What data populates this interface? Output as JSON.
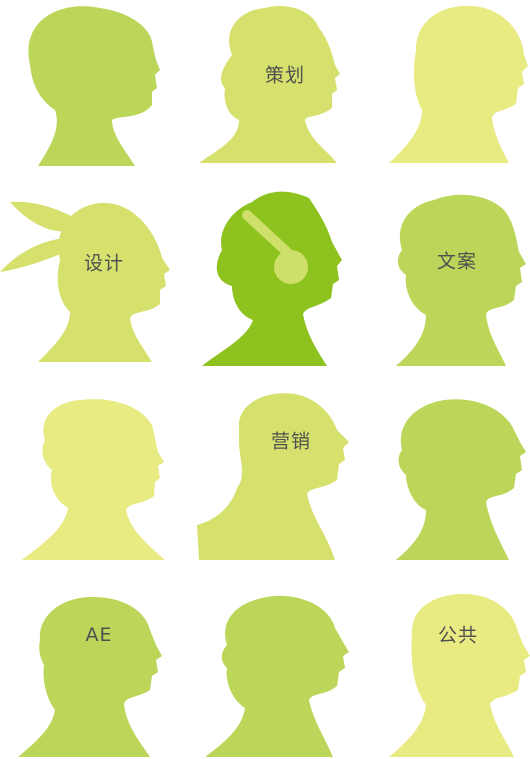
{
  "palette": {
    "lime": "#bcd65a",
    "light_olive": "#d6e06c",
    "pale_yellow": "#e8ea82",
    "bright_green": "#8dc21f",
    "headphones": "#cfe06a"
  },
  "profiles": [
    {
      "label": "",
      "color": "lime",
      "style": "bob"
    },
    {
      "label": "策划",
      "color": "light_olive",
      "style": "curly"
    },
    {
      "label": "",
      "color": "pale_yellow",
      "style": "bald"
    },
    {
      "label": "设计",
      "color": "light_olive",
      "style": "bandana"
    },
    {
      "label": "",
      "color": "bright_green",
      "style": "headphones"
    },
    {
      "label": "文案",
      "color": "lime",
      "style": "spiky"
    },
    {
      "label": "",
      "color": "pale_yellow",
      "style": "curly-woman"
    },
    {
      "label": "营销",
      "color": "light_olive",
      "style": "quiff"
    },
    {
      "label": "",
      "color": "lime",
      "style": "short"
    },
    {
      "label": "AE",
      "color": "lime",
      "style": "short"
    },
    {
      "label": "",
      "color": "lime",
      "style": "spiky"
    },
    {
      "label": "公共",
      "color": "pale_yellow",
      "style": "bald"
    }
  ]
}
